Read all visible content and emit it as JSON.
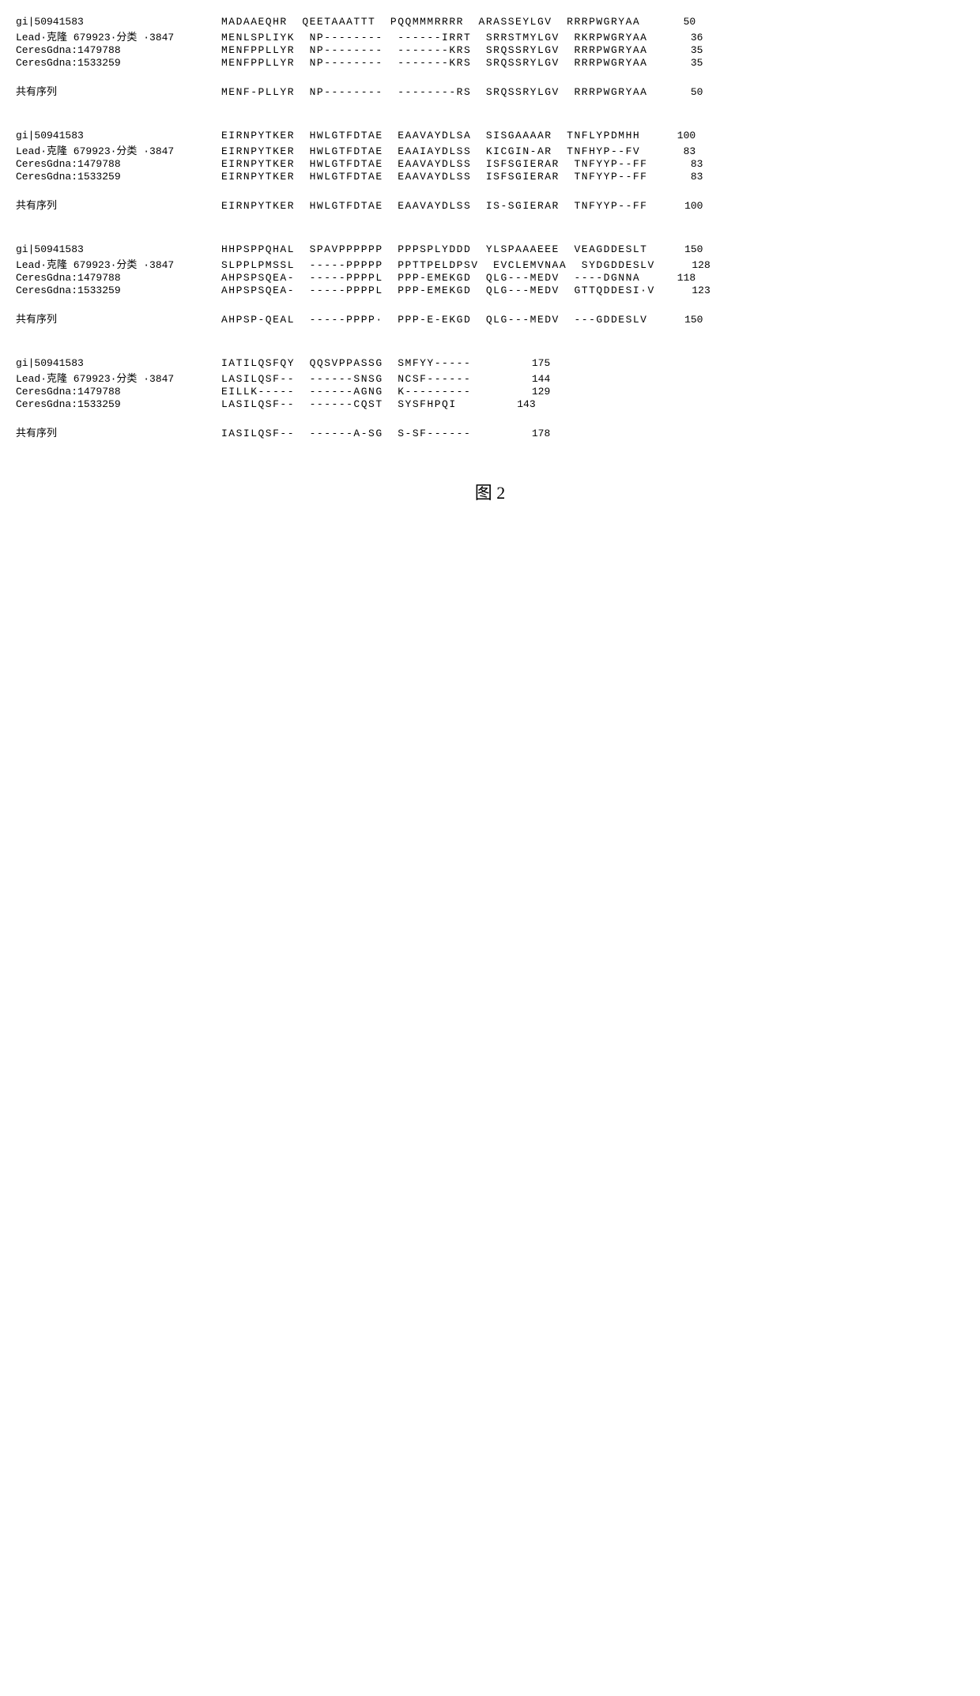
{
  "labels": {
    "seq1": "gi|50941583",
    "seq2": "Lead·克隆 679923·分类 ·3847",
    "seq3": "CeresGdna:1479788",
    "seq4": "CeresGdna:1533259",
    "consensus": "共有序列"
  },
  "figure_label": "图 2",
  "blocks": [
    {
      "rows": [
        {
          "label_key": "seq1",
          "segments": [
            "MADAAEQHR",
            "QEETAAATTT",
            "PQQMMMRRRR",
            "ARASSEYLGV",
            "RRRPWGRYAA"
          ],
          "num": "50"
        },
        {
          "label_key": "seq2",
          "segments": [
            "MENLSPLIYK",
            "NP--------",
            "------IRRT",
            "SRRSTMYLGV",
            "RKRPWGRYAA"
          ],
          "num": "36"
        },
        {
          "label_key": "seq3",
          "segments": [
            "MENFPPLLYR",
            "NP--------",
            "-------KRS",
            "SRQSSRYLGV",
            "RRRPWGRYAA"
          ],
          "num": "35"
        },
        {
          "label_key": "seq4",
          "segments": [
            "MENFPPLLYR",
            "NP--------",
            "-------KRS",
            "SRQSSRYLGV",
            "RRRPWGRYAA"
          ],
          "num": "35"
        }
      ],
      "consensus": {
        "segments": [
          "MENF-PLLYR",
          "NP--------",
          "--------RS",
          "SRQSSRYLGV",
          "RRRPWGRYAA"
        ],
        "num": "50"
      }
    },
    {
      "rows": [
        {
          "label_key": "seq1",
          "segments": [
            "EIRNPYTKER",
            "HWLGTFDTAE",
            "EAAVAYDLSA",
            "SISGAAAAR",
            "TNFLYPDMHH"
          ],
          "num": "100"
        },
        {
          "label_key": "seq2",
          "segments": [
            "EIRNPYTKER",
            "HWLGTFDTAE",
            "EAAIAYDLSS",
            "KICGIN-AR",
            "TNFHYP--FV"
          ],
          "num": "83"
        },
        {
          "label_key": "seq3",
          "segments": [
            "EIRNPYTKER",
            "HWLGTFDTAE",
            "EAAVAYDLSS",
            "ISFSGIERAR",
            "TNFYYP--FF"
          ],
          "num": "83"
        },
        {
          "label_key": "seq4",
          "segments": [
            "EIRNPYTKER",
            "HWLGTFDTAE",
            "EAAVAYDLSS",
            "ISFSGIERAR",
            "TNFYYP--FF"
          ],
          "num": "83"
        }
      ],
      "consensus": {
        "segments": [
          "EIRNPYTKER",
          "HWLGTFDTAE",
          "EAAVAYDLSS",
          "IS-SGIERAR",
          "TNFYYP--FF"
        ],
        "num": "100"
      }
    },
    {
      "rows": [
        {
          "label_key": "seq1",
          "segments": [
            "HHPSPPQHAL",
            "SPAVPPPPPP",
            "PPPSPLYDDD",
            "YLSPAAAEEE",
            "VEAGDDESLT"
          ],
          "num": "150"
        },
        {
          "label_key": "seq2",
          "segments": [
            "SLPPLPMSSL",
            "-----PPPPP",
            "PPTTPELDPSV",
            "EVCLEMVNAA",
            "SYDGDDESLV"
          ],
          "num": "128"
        },
        {
          "label_key": "seq3",
          "segments": [
            "AHPSPSQEA-",
            "-----PPPPL",
            "PPP-EMEKGD",
            "QLG---MEDV",
            "----DGNNA"
          ],
          "num": "118"
        },
        {
          "label_key": "seq4",
          "segments": [
            "AHPSPSQEA-",
            "-----PPPPL",
            "PPP-EMEKGD",
            "QLG---MEDV",
            "GTTQDDESI·V"
          ],
          "num": "123"
        }
      ],
      "consensus": {
        "segments": [
          "AHPSP-QEAL",
          "-----PPPP·",
          "PPP-E-EKGD",
          "QLG---MEDV",
          "---GDDESLV"
        ],
        "num": "150"
      }
    },
    {
      "rows": [
        {
          "label_key": "seq1",
          "segments": [
            "IATILQSFQY",
            "QQSVPPASSG",
            "SMFYY-----",
            "",
            "175"
          ],
          "num": "175"
        },
        {
          "label_key": "seq2",
          "segments": [
            "LASILQSF--",
            "------SNSG",
            "NCSF------",
            "",
            "144"
          ],
          "num": "144"
        },
        {
          "label_key": "seq3",
          "segments": [
            "EILLK-----",
            "------AGNG",
            "K---------",
            "",
            "129"
          ],
          "num": "129"
        },
        {
          "label_key": "seq4",
          "segments": [
            "LASILQSF--",
            "------CQST",
            "SYSFHPQI",
            "",
            "143"
          ],
          "num": "143"
        }
      ],
      "consensus": {
        "segments": [
          "IASILQSF--",
          "------A-SG",
          "S-SF------",
          "",
          "178"
        ],
        "num": "178"
      }
    }
  ]
}
